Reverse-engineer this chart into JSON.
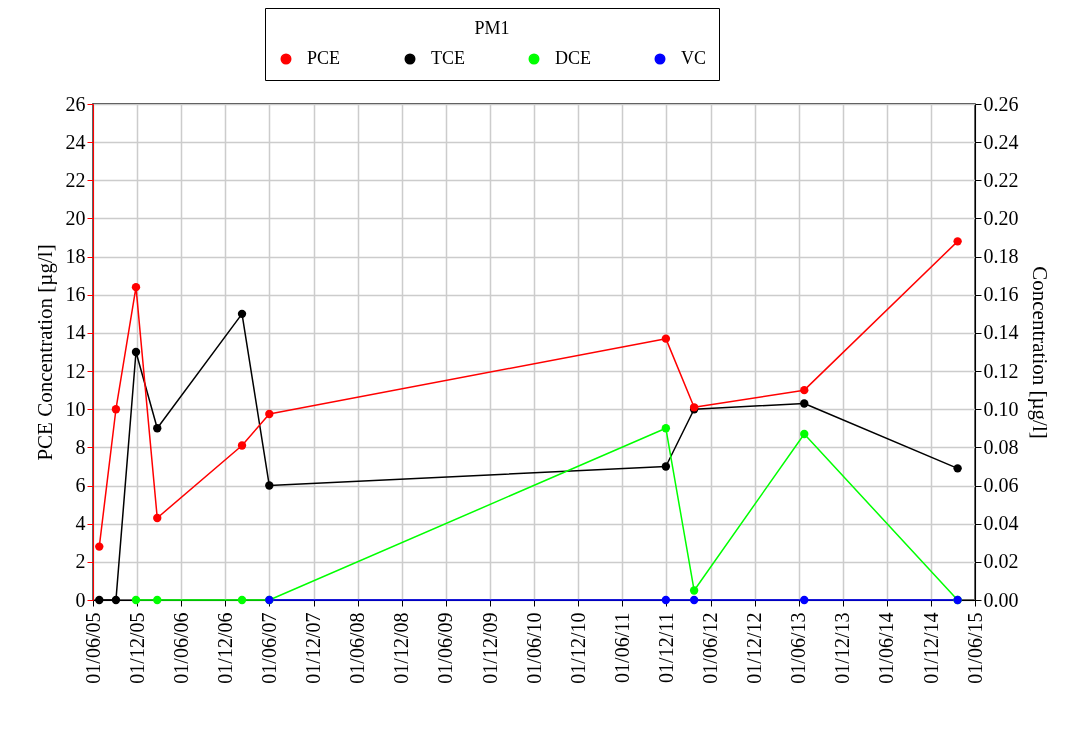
{
  "chart_data": {
    "type": "line",
    "legend_title": "PM1",
    "ylabel": "PCE Concentration [µg/l]",
    "y2label": "Concentration [µg/l]",
    "series": [
      {
        "name": "PCE",
        "color": "#ff0000",
        "x": [
          "2005-06-27",
          "2005-09-04",
          "2005-11-26",
          "2006-02-22",
          "2007-02-08",
          "2007-06-01",
          "2011-11-29",
          "2012-03-25",
          "2013-06-24",
          "2015-03-21"
        ],
        "values": [
          2.8,
          10.0,
          16.4,
          4.3,
          8.1,
          9.75,
          13.7,
          10.1,
          11.0,
          18.8
        ]
      },
      {
        "name": "TCE",
        "color": "#000000",
        "axis": "y2",
        "x": [
          "2005-06-27",
          "2005-09-04",
          "2005-11-26",
          "2006-02-22",
          "2007-02-08",
          "2007-06-01",
          "2011-11-29",
          "2012-03-25",
          "2013-06-24",
          "2015-03-21"
        ],
        "values": [
          0,
          0,
          0.13,
          0.09,
          0.15,
          0.06,
          0.07,
          0.1,
          0.103,
          0.069
        ]
      },
      {
        "name": "DCE",
        "color": "#00ff00",
        "axis": "y2",
        "x": [
          "2005-11-26",
          "2006-02-22",
          "2007-02-08",
          "2007-06-01",
          "2011-11-29",
          "2012-03-25",
          "2013-06-24",
          "2015-03-21"
        ],
        "values": [
          0,
          0,
          0,
          0,
          0.09,
          0.005,
          0.087,
          0
        ]
      },
      {
        "name": "VC",
        "color": "#0000ff",
        "axis": "y2",
        "x": [
          "2007-06-01",
          "2011-11-29",
          "2012-03-25",
          "2013-06-24",
          "2015-03-21"
        ],
        "values": [
          0,
          0,
          0,
          0,
          0
        ]
      }
    ],
    "xlim": [
      "2005-06-01",
      "2015-06-01"
    ],
    "xticks": [
      {
        "value": "2005-06-01",
        "label": "01/06/05"
      },
      {
        "value": "2005-12-01",
        "label": "01/12/05"
      },
      {
        "value": "2006-06-01",
        "label": "01/06/06"
      },
      {
        "value": "2006-12-01",
        "label": "01/12/06"
      },
      {
        "value": "2007-06-01",
        "label": "01/06/07"
      },
      {
        "value": "2007-12-01",
        "label": "01/12/07"
      },
      {
        "value": "2008-06-01",
        "label": "01/06/08"
      },
      {
        "value": "2008-12-01",
        "label": "01/12/08"
      },
      {
        "value": "2009-06-01",
        "label": "01/06/09"
      },
      {
        "value": "2009-12-01",
        "label": "01/12/09"
      },
      {
        "value": "2010-06-01",
        "label": "01/06/10"
      },
      {
        "value": "2010-12-01",
        "label": "01/12/10"
      },
      {
        "value": "2011-06-01",
        "label": "01/06/11"
      },
      {
        "value": "2011-12-01",
        "label": "01/12/11"
      },
      {
        "value": "2012-06-01",
        "label": "01/06/12"
      },
      {
        "value": "2012-12-01",
        "label": "01/12/12"
      },
      {
        "value": "2013-06-01",
        "label": "01/06/13"
      },
      {
        "value": "2013-12-01",
        "label": "01/12/13"
      },
      {
        "value": "2014-06-01",
        "label": "01/06/14"
      },
      {
        "value": "2014-12-01",
        "label": "01/12/14"
      },
      {
        "value": "2015-06-01",
        "label": "01/06/15"
      }
    ],
    "ylim": [
      0,
      26
    ],
    "yticks": [
      0,
      2,
      4,
      6,
      8,
      10,
      12,
      14,
      16,
      18,
      20,
      22,
      24,
      26
    ],
    "y2lim": [
      0,
      0.26
    ],
    "y2ticks": [
      {
        "value": 0,
        "label": "0.00"
      },
      0.02,
      0.04,
      0.06,
      0.08,
      {
        "value": 0.1,
        "label": "0.10"
      },
      0.12,
      0.14,
      0.16,
      0.18,
      {
        "value": 0.2,
        "label": "0.20"
      },
      0.22,
      0.24,
      0.26
    ],
    "grid": true,
    "legend": "top",
    "marker": "circle",
    "line_style": "solid"
  }
}
